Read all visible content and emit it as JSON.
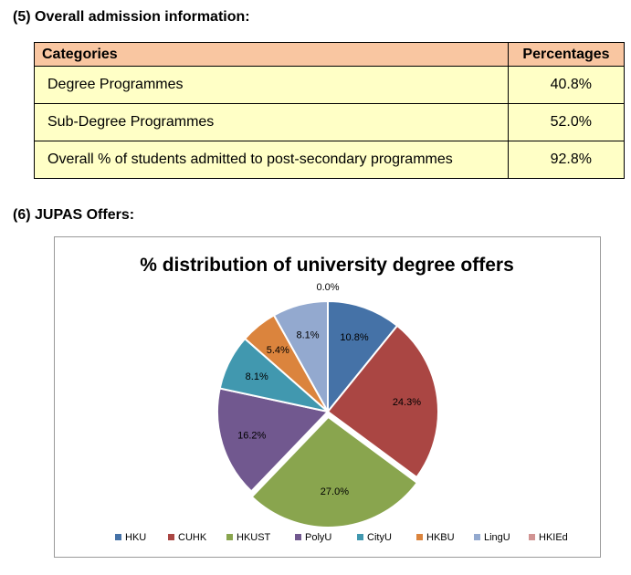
{
  "section5": {
    "heading": "(5)  Overall admission information:",
    "columns": [
      "Categories",
      "Percentages"
    ],
    "rows": [
      {
        "category": "Degree Programmes",
        "percentage": "40.8%"
      },
      {
        "category": "Sub-Degree Programmes",
        "percentage": "52.0%"
      },
      {
        "category": "Overall % of students admitted to post-secondary programmes",
        "percentage": "92.8%"
      }
    ]
  },
  "section6": {
    "heading": "(6)  JUPAS Offers:"
  },
  "chart_data": {
    "type": "pie",
    "title": "% distribution of university degree offers",
    "legend_position": "bottom",
    "categories": [
      "HKU",
      "CUHK",
      "HKUST",
      "PolyU",
      "CityU",
      "HKBU",
      "LingU",
      "HKIEd"
    ],
    "values": [
      10.8,
      24.3,
      27.0,
      16.2,
      8.1,
      5.4,
      8.1,
      0.0
    ],
    "labels": [
      "10.8%",
      "24.3%",
      "27.0%",
      "16.2%",
      "8.1%",
      "5.4%",
      "8.1%",
      "0.0%"
    ],
    "colors": [
      "#4572a7",
      "#aa4643",
      "#89a54e",
      "#71588f",
      "#4198af",
      "#db843d",
      "#93a9cf",
      "#d19392"
    ]
  }
}
